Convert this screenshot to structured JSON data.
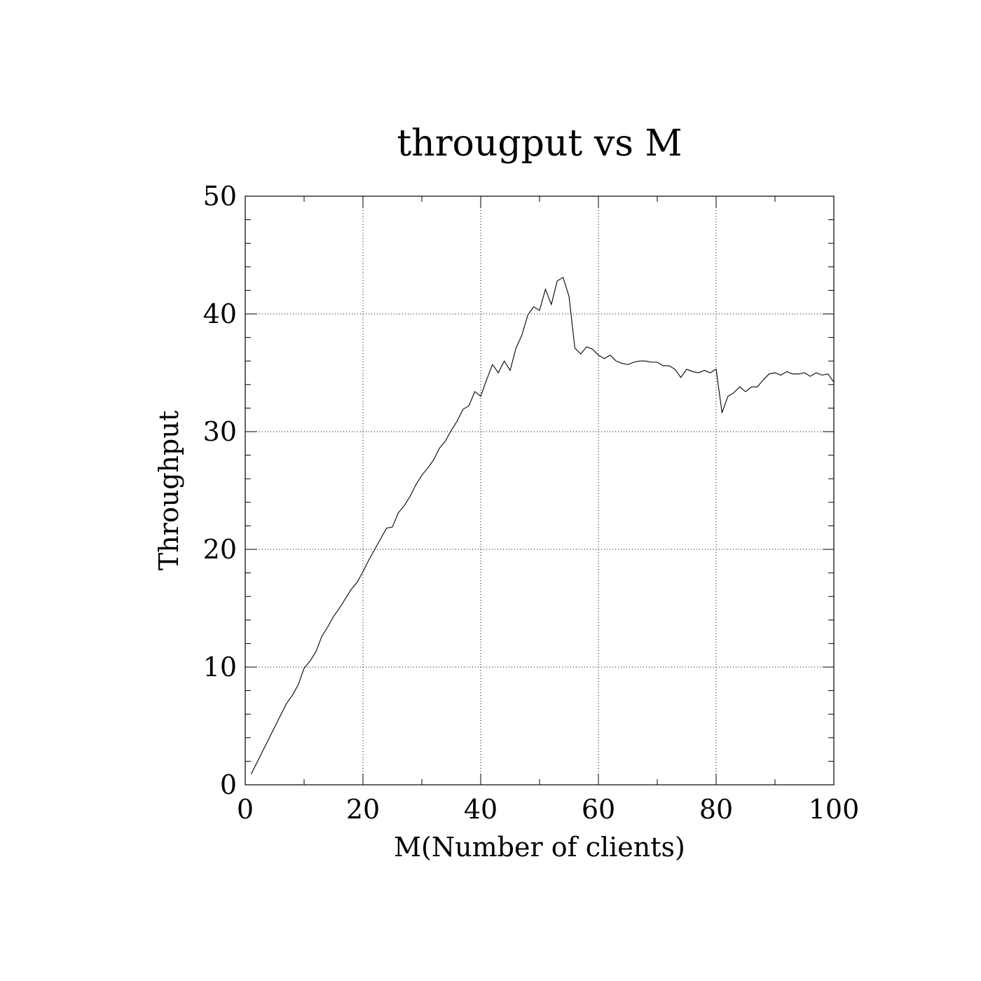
{
  "chart_data": {
    "type": "line",
    "title": "througput vs M",
    "xlabel": "M(Number of clients)",
    "ylabel": "Throughput",
    "xlim": [
      0,
      100
    ],
    "ylim": [
      0,
      50
    ],
    "x_ticks": [
      0,
      20,
      40,
      60,
      80,
      100
    ],
    "y_ticks": [
      0,
      10,
      20,
      30,
      40,
      50
    ],
    "x_minor_step": 10,
    "y_minor_step": 2,
    "grid": true,
    "legend": "none",
    "colors": {
      "line": "#000000",
      "grid": "#000000",
      "axes": "#000000"
    },
    "series": [
      {
        "x": [
          1,
          2,
          3,
          4,
          5,
          6,
          7,
          8,
          9,
          10,
          11,
          12,
          13,
          14,
          15,
          16,
          17,
          18,
          19,
          20,
          21,
          22,
          23,
          24,
          25,
          26,
          27,
          28,
          29,
          30,
          31,
          32,
          33,
          34,
          35,
          36,
          37,
          38,
          39,
          40,
          41,
          42,
          43,
          44,
          45,
          46,
          47,
          48,
          49,
          50,
          51,
          52,
          53,
          54,
          55,
          56,
          57,
          58,
          59,
          60,
          61,
          62,
          63,
          64,
          65,
          66,
          67,
          68,
          69,
          70,
          71,
          72,
          73,
          74,
          75,
          76,
          77,
          78,
          79,
          80,
          81,
          82,
          83,
          84,
          85,
          86,
          87,
          88,
          89,
          90,
          91,
          92,
          93,
          94,
          95,
          96,
          97,
          98,
          99,
          100
        ],
        "y": [
          0.9,
          1.9,
          2.9,
          3.9,
          4.9,
          5.9,
          6.9,
          7.6,
          8.5,
          9.9,
          10.5,
          11.3,
          12.6,
          13.4,
          14.3,
          15.0,
          15.8,
          16.6,
          17.2,
          18.1,
          19.1,
          20.0,
          20.9,
          21.8,
          21.9,
          23.1,
          23.7,
          24.5,
          25.5,
          26.3,
          26.9,
          27.6,
          28.6,
          29.2,
          30.1,
          30.9,
          31.9,
          32.2,
          33.4,
          33.0,
          34.4,
          35.7,
          35.0,
          36.0,
          35.2,
          37.1,
          38.2,
          39.9,
          40.6,
          40.3,
          42.1,
          40.8,
          42.8,
          43.1,
          41.5,
          37.1,
          36.6,
          37.2,
          37.0,
          36.5,
          36.2,
          36.5,
          36.0,
          35.8,
          35.7,
          35.9,
          36.0,
          36.0,
          35.9,
          35.9,
          35.6,
          35.6,
          35.3,
          34.6,
          35.3,
          35.1,
          35.0,
          35.2,
          35.0,
          35.3,
          31.6,
          33.0,
          33.3,
          33.8,
          33.4,
          33.8,
          33.8,
          34.4,
          34.9,
          35.0,
          34.8,
          35.1,
          34.9,
          34.9,
          35.0,
          34.7,
          35.0,
          34.8,
          34.9,
          34.2
        ]
      }
    ]
  }
}
